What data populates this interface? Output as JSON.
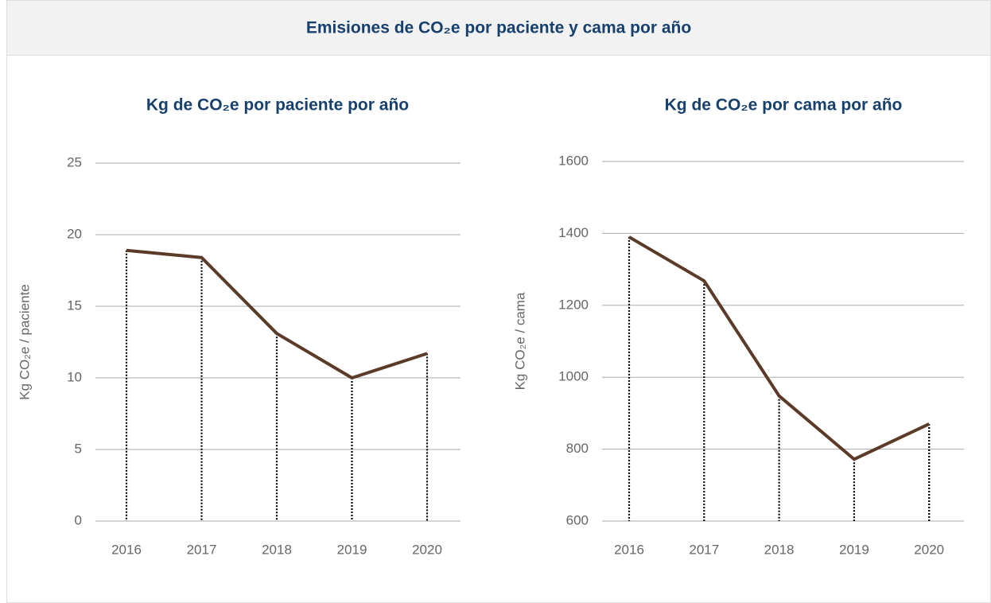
{
  "title": "Emisiones de CO₂e por paciente y cama por año",
  "chart_data": [
    {
      "type": "line",
      "title": "Kg de CO₂e por paciente por año",
      "y_label": "Kg CO₂e / paciente",
      "categories": [
        "2016",
        "2017",
        "2018",
        "2019",
        "2020"
      ],
      "series": [
        {
          "name": "Kg CO₂e / paciente",
          "color": "#5c3a28",
          "values": [
            18.9,
            18.4,
            13.1,
            10.0,
            11.7
          ]
        }
      ],
      "ylim": [
        0,
        25
      ],
      "yticks": [
        0,
        5,
        10,
        15,
        20,
        25
      ],
      "grid": true
    },
    {
      "type": "line",
      "title": "Kg de CO₂e por cama por año",
      "y_label": "Kg CO₂e / cama",
      "categories": [
        "2016",
        "2017",
        "2018",
        "2019",
        "2020"
      ],
      "series": [
        {
          "name": "Kg CO₂e / cama",
          "color": "#5c3a28",
          "values": [
            1390,
            1268,
            948,
            772,
            870
          ]
        }
      ],
      "ylim": [
        600,
        1600
      ],
      "yticks": [
        600,
        800,
        1000,
        1200,
        1400,
        1600
      ],
      "grid": true
    }
  ]
}
